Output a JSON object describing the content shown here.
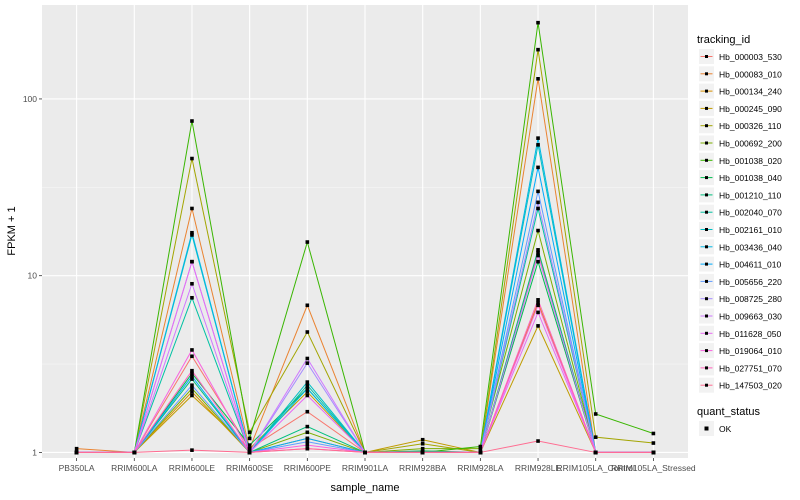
{
  "chart_data": {
    "type": "line",
    "title": "",
    "xlabel": "sample_name",
    "ylabel": "FPKM + 1",
    "y_scale": "log10",
    "ylim": [
      0.93,
      340
    ],
    "y_ticks": [
      1,
      10,
      100
    ],
    "y_tick_labels": [
      "1",
      "10",
      "100"
    ],
    "grid": true,
    "legend_position": "right",
    "categories": [
      "PB350LA",
      "RRIM600LA",
      "RRIM600LE",
      "RRIM600SE",
      "RRIM600PE",
      "RRIM901LA",
      "RRIM928BA",
      "RRIM928LA",
      "RRIM928LE",
      "RRIM105LA_Control",
      "RRIM105LA_Stressed"
    ],
    "legend_title": "tracking_id",
    "status_legend_title": "quant_status",
    "status_legend_label": "OK",
    "series": [
      {
        "name": "Hb_000003_530",
        "color": "#F8766D",
        "values": [
          1.0,
          1.0,
          3.5,
          1.05,
          1.7,
          1.0,
          1.0,
          1.0,
          13.5,
          1.0,
          1.0
        ]
      },
      {
        "name": "Hb_000083_010",
        "color": "#EA8331",
        "values": [
          1.05,
          1.0,
          24.0,
          1.05,
          6.8,
          1.0,
          1.0,
          1.0,
          130.0,
          1.0,
          1.0
        ]
      },
      {
        "name": "Hb_000134_240",
        "color": "#D89000",
        "values": [
          1.0,
          1.0,
          2.2,
          1.0,
          1.2,
          1.0,
          1.0,
          1.0,
          7.0,
          1.0,
          1.0
        ]
      },
      {
        "name": "Hb_000245_090",
        "color": "#C09B00",
        "values": [
          1.0,
          1.0,
          2.1,
          1.05,
          2.2,
          1.0,
          1.18,
          1.0,
          5.2,
          1.0,
          1.0
        ]
      },
      {
        "name": "Hb_000326_110",
        "color": "#A3A500",
        "values": [
          1.0,
          1.0,
          46.0,
          1.3,
          4.8,
          1.0,
          1.12,
          1.0,
          190.0,
          1.22,
          1.13
        ]
      },
      {
        "name": "Hb_000692_200",
        "color": "#7CAE00",
        "values": [
          1.0,
          1.0,
          2.3,
          1.0,
          1.3,
          1.0,
          1.05,
          1.05,
          18.0,
          1.0,
          1.0
        ]
      },
      {
        "name": "Hb_001038_020",
        "color": "#39B600",
        "values": [
          1.0,
          1.0,
          75.0,
          1.2,
          15.5,
          1.0,
          1.0,
          1.08,
          270.0,
          1.65,
          1.28
        ]
      },
      {
        "name": "Hb_001038_040",
        "color": "#00BB4E",
        "values": [
          1.0,
          1.0,
          2.8,
          1.1,
          2.3,
          1.0,
          1.02,
          1.0,
          12.0,
          1.0,
          1.0
        ]
      },
      {
        "name": "Hb_001210_110",
        "color": "#00BF7D",
        "values": [
          1.0,
          1.0,
          2.6,
          1.0,
          1.4,
          1.0,
          1.0,
          1.0,
          14.0,
          1.0,
          1.0
        ]
      },
      {
        "name": "Hb_002040_070",
        "color": "#00C1A3",
        "values": [
          1.0,
          1.0,
          7.5,
          1.0,
          2.4,
          1.0,
          1.0,
          1.0,
          24.0,
          1.0,
          1.0
        ]
      },
      {
        "name": "Hb_002161_010",
        "color": "#00BFC4",
        "values": [
          1.0,
          1.0,
          17.0,
          1.0,
          2.5,
          1.0,
          1.0,
          1.0,
          55.0,
          1.0,
          1.0
        ]
      },
      {
        "name": "Hb_003436_040",
        "color": "#00B8E5",
        "values": [
          1.0,
          1.0,
          17.5,
          1.0,
          2.3,
          1.0,
          1.0,
          1.0,
          60.0,
          1.0,
          1.0
        ]
      },
      {
        "name": "Hb_004611_010",
        "color": "#00ABFD",
        "values": [
          1.0,
          1.0,
          2.7,
          1.0,
          1.2,
          1.0,
          1.0,
          1.0,
          41.0,
          1.0,
          1.0
        ]
      },
      {
        "name": "Hb_005656_220",
        "color": "#619CFF",
        "values": [
          1.0,
          1.0,
          2.4,
          1.0,
          1.15,
          1.0,
          1.0,
          1.0,
          30.0,
          1.0,
          1.0
        ]
      },
      {
        "name": "Hb_008725_280",
        "color": "#A58AFF",
        "values": [
          1.0,
          1.0,
          12.0,
          1.0,
          3.2,
          1.0,
          1.0,
          1.0,
          26.0,
          1.0,
          1.0
        ]
      },
      {
        "name": "Hb_009663_030",
        "color": "#CF78FF",
        "values": [
          1.0,
          1.0,
          9.0,
          1.0,
          3.4,
          1.0,
          1.0,
          1.0,
          13.0,
          1.0,
          1.0
        ]
      },
      {
        "name": "Hb_011628_050",
        "color": "#E76BF3",
        "values": [
          1.0,
          1.0,
          12.0,
          1.0,
          2.1,
          1.0,
          1.0,
          1.0,
          6.2,
          1.0,
          1.0
        ]
      },
      {
        "name": "Hb_019064_010",
        "color": "#F863DF",
        "values": [
          1.0,
          1.0,
          3.8,
          1.0,
          1.1,
          1.0,
          1.0,
          1.0,
          6.8,
          1.0,
          1.0
        ]
      },
      {
        "name": "Hb_027751_070",
        "color": "#FF62BC",
        "values": [
          1.0,
          1.0,
          2.9,
          1.0,
          1.05,
          1.0,
          1.0,
          1.0,
          7.3,
          1.0,
          1.0
        ]
      },
      {
        "name": "Hb_147503_020",
        "color": "#FF6C91",
        "values": [
          1.0,
          1.0,
          1.03,
          1.0,
          1.05,
          1.0,
          1.0,
          1.0,
          1.16,
          1.0,
          1.0
        ]
      }
    ]
  }
}
